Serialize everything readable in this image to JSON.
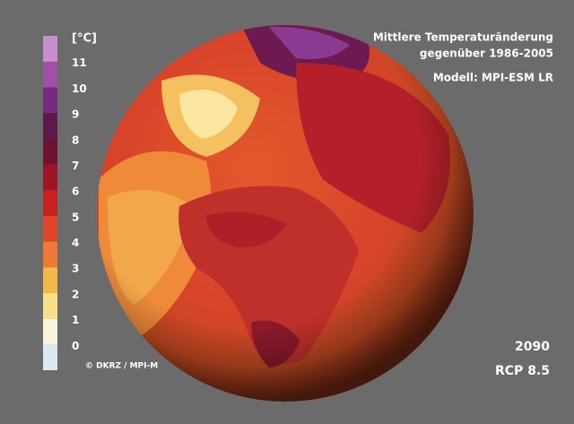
{
  "legend": {
    "unit": "[°C]",
    "ticks": [
      0,
      1,
      2,
      3,
      4,
      5,
      6,
      7,
      8,
      9,
      10,
      11
    ]
  },
  "title": [
    "Mittlere Temperaturänderung",
    "gegenüber 1986-2005"
  ],
  "model": "Modell: MPI-ESM LR",
  "credit": "© DKRZ / MPI-M",
  "year": "2090",
  "scenario": "RCP 8.5"
}
